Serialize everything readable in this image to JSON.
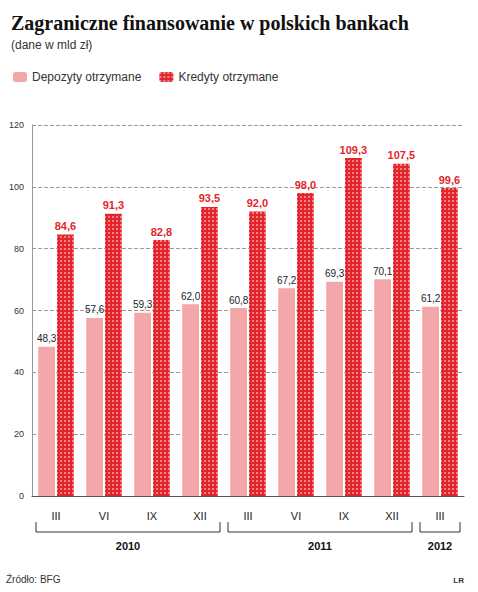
{
  "chart_data": {
    "type": "bar",
    "title": "Zagraniczne finansowanie w polskich bankach",
    "subtitle": "(dane w mld zł)",
    "source": "Źródło: BFG",
    "credit": "LR",
    "categories": [
      "III",
      "VI",
      "IX",
      "XII",
      "III",
      "VI",
      "IX",
      "XII",
      "III"
    ],
    "category_groups": [
      {
        "label": "2010",
        "count": 4
      },
      {
        "label": "2011",
        "count": 4
      },
      {
        "label": "2012",
        "count": 1
      }
    ],
    "series": [
      {
        "name": "Depozyty otrzymane",
        "color": "#f4a7a8",
        "values": [
          48.3,
          57.6,
          59.3,
          62.0,
          60.8,
          67.2,
          69.3,
          70.1,
          61.2
        ],
        "value_labels": [
          "48,3",
          "57,6",
          "59,3",
          "62,0",
          "60,8",
          "67,2",
          "69,3",
          "70,1",
          "61,2"
        ]
      },
      {
        "name": "Kredyty otrzymane",
        "color": "#e4262c",
        "values": [
          84.6,
          91.3,
          82.8,
          93.5,
          92.0,
          98.0,
          109.3,
          107.5,
          99.6
        ],
        "value_labels": [
          "84,6",
          "91,3",
          "82,8",
          "93,5",
          "92,0",
          "98,0",
          "109,3",
          "107,5",
          "99,6"
        ]
      }
    ],
    "ylim": [
      0,
      120
    ],
    "yticks": [
      0,
      20,
      40,
      60,
      80,
      100,
      120
    ],
    "grid": true,
    "legend": "top-left",
    "data_labels": true
  }
}
